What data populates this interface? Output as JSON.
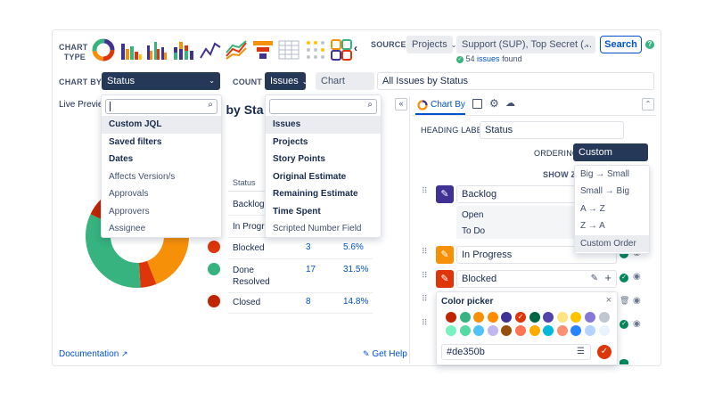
{
  "toolbar": {
    "chart_type_label": "CHART\nTYPE",
    "source_label": "SOURCE",
    "source_type": "Projects",
    "source_value": "Support (SUP), Top Secret (...",
    "search_label": "Search",
    "issues_found_count": "54",
    "issues_found_link": "issues",
    "issues_found_suffix": "found",
    "chart_by_label": "CHART BY",
    "chart_by_value": "Status",
    "count_label": "COUNT",
    "count_value": "Issues",
    "chart_title_button": "Chart title",
    "chart_title_value": "All Issues by Status"
  },
  "preview": {
    "live_preview_label": "Live Preview",
    "title_partial": "es by Sta",
    "table_header_status": "Status",
    "rows": [
      {
        "status": "Backlog",
        "count": "",
        "pct": "",
        "color": "#403294"
      },
      {
        "status": "In Progres",
        "count": "",
        "pct": "",
        "color": "#f79009"
      },
      {
        "status": "Blocked",
        "count": "3",
        "pct": "5.6%",
        "color": "#de350b"
      },
      {
        "status": "Done\nResolved",
        "count": "17",
        "pct": "31.5%",
        "color": "#36b37e"
      },
      {
        "status": "Closed",
        "count": "8",
        "pct": "14.8%",
        "color": "#bf2600"
      }
    ],
    "documentation_label": "Documentation",
    "get_help_label": "Get Help"
  },
  "chart_by_menu": {
    "search_value": "",
    "items": [
      {
        "label": "Custom JQL",
        "bold": true,
        "selected": true
      },
      {
        "label": "Saved filters",
        "bold": true,
        "selected": false
      },
      {
        "label": "Dates",
        "bold": true,
        "selected": false
      },
      {
        "label": "Affects Version/s",
        "bold": false,
        "selected": false
      },
      {
        "label": "Approvals",
        "bold": false,
        "selected": false
      },
      {
        "label": "Approvers",
        "bold": false,
        "selected": false
      },
      {
        "label": "Assignee",
        "bold": false,
        "selected": false
      }
    ]
  },
  "count_menu": {
    "search_value": "",
    "items": [
      {
        "label": "Issues",
        "bold": true,
        "selected": true
      },
      {
        "label": "Projects",
        "bold": true,
        "selected": false
      },
      {
        "label": "Story Points",
        "bold": true,
        "selected": false
      },
      {
        "label": "Original Estimate",
        "bold": true,
        "selected": false
      },
      {
        "label": "Remaining Estimate",
        "bold": true,
        "selected": false
      },
      {
        "label": "Time Spent",
        "bold": true,
        "selected": false
      },
      {
        "label": "Scripted Number Field",
        "bold": false,
        "selected": false
      }
    ]
  },
  "settings": {
    "tab_chart_by": "Chart By",
    "heading_label": "HEADING LABEL",
    "heading_value": "Status",
    "ordering_label": "ORDERING",
    "ordering_value": "Custom Order",
    "show_zero_partial": "SHOW ZE",
    "ordering_options": [
      "Big → Small",
      "Small → Big",
      "A → Z",
      "Z → A",
      "Custom Order"
    ],
    "backlog_label": "Backlog",
    "backlog_sub": [
      "Open",
      "To Do"
    ],
    "in_progress_label": "In Progress",
    "blocked_label": "Blocked"
  },
  "color_picker": {
    "title": "Color picker",
    "hex_value": "#de350b",
    "row1": [
      "#bf2600",
      "#36b37e",
      "#f79009",
      "#ff8b00",
      "#403294",
      "#de350b",
      "#006644",
      "#5243aa",
      "#ffe380",
      "#ffc400",
      "#8777d9",
      "#c1c7d0"
    ],
    "row2": [
      "#79f2c0",
      "#57d9a3",
      "#4fc3f7",
      "#c0b6f2",
      "#974f0c",
      "#ff7452",
      "#ffab00",
      "#00b8d9",
      "#ff8f73",
      "#2684ff",
      "#b3d4ff",
      "#e9f2ff"
    ]
  },
  "chart_data": {
    "type": "pie",
    "categories": [
      "Backlog",
      "In Progress",
      "Blocked",
      "Done Resolved",
      "Closed"
    ],
    "values": [
      null,
      null,
      3,
      17,
      8
    ],
    "percent_labels": [
      "",
      "",
      "5.6%",
      "31.5%",
      "14.8%"
    ],
    "colors": [
      "#403294",
      "#f79009",
      "#de350b",
      "#36b37e",
      "#bf2600"
    ]
  }
}
